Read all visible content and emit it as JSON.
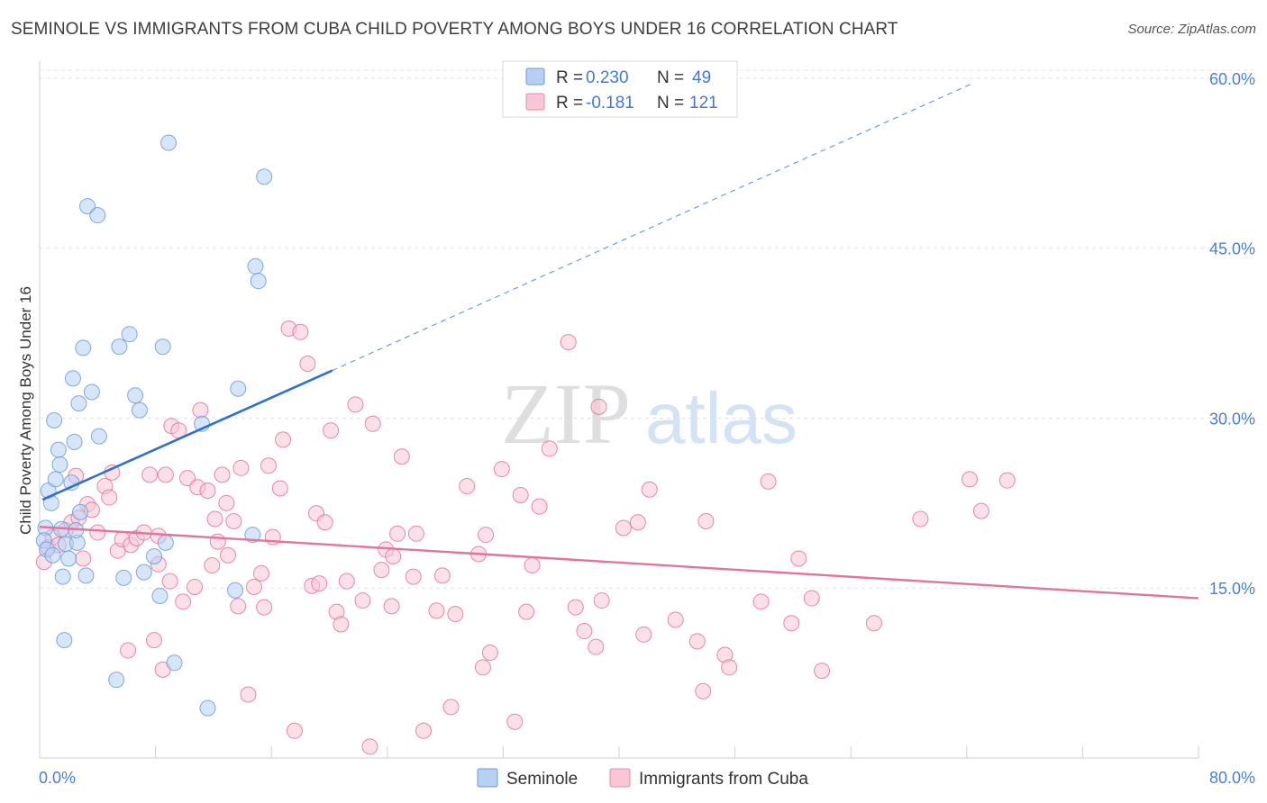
{
  "title": "SEMINOLE VS IMMIGRANTS FROM CUBA CHILD POVERTY AMONG BOYS UNDER 16 CORRELATION CHART",
  "source": "Source: ZipAtlas.com",
  "watermark": {
    "zip": "ZIP",
    "atlas": "atlas"
  },
  "legend": {
    "rows": [
      {
        "r_label": "R = ",
        "r_value": "0.230",
        "n_label": "N = ",
        "n_value": "49",
        "fill": "#b7d0f2",
        "stroke": "#6a9bdc"
      },
      {
        "r_label": "R = ",
        "r_value": "-0.181",
        "n_label": "N = ",
        "n_value": "121",
        "fill": "#f8c6d5",
        "stroke": "#e88aa6"
      }
    ]
  },
  "chart_data": {
    "type": "scatter",
    "title": "SEMINOLE VS IMMIGRANTS FROM CUBA CHILD POVERTY AMONG BOYS UNDER 16 CORRELATION CHART",
    "xlabel": "",
    "ylabel": "Child Poverty Among Boys Under 16",
    "xlim": [
      0,
      80
    ],
    "ylim": [
      0,
      61.5
    ],
    "y_ticks": [
      15,
      30,
      45,
      60
    ],
    "y_tick_labels": [
      "15.0%",
      "30.0%",
      "45.0%",
      "60.0%"
    ],
    "x_tick_labels": [
      "0.0%",
      "80.0%"
    ],
    "grid": true,
    "legend_position": "top-center",
    "series": [
      {
        "name": "Seminole",
        "color": "#6a9bdc",
        "fill": "#b7d0f2",
        "trend": {
          "x0": 0.2,
          "y0": 22.8,
          "x1": 20.2,
          "y1": 34.2,
          "dash_to_x": 64.5,
          "dash_to_y": 59.6
        },
        "points": [
          [
            0.4,
            20.3
          ],
          [
            0.3,
            19.2
          ],
          [
            0.5,
            18.4
          ],
          [
            0.6,
            23.6
          ],
          [
            0.8,
            22.5
          ],
          [
            1.0,
            29.8
          ],
          [
            1.1,
            24.6
          ],
          [
            1.3,
            27.2
          ],
          [
            1.4,
            25.9
          ],
          [
            1.5,
            20.2
          ],
          [
            1.6,
            16.0
          ],
          [
            1.7,
            10.4
          ],
          [
            1.8,
            18.9
          ],
          [
            2.0,
            17.6
          ],
          [
            2.2,
            24.3
          ],
          [
            2.3,
            33.5
          ],
          [
            2.4,
            27.9
          ],
          [
            2.6,
            19.0
          ],
          [
            2.7,
            31.3
          ],
          [
            2.8,
            21.7
          ],
          [
            3.0,
            36.2
          ],
          [
            3.2,
            16.1
          ],
          [
            3.3,
            48.7
          ],
          [
            3.6,
            32.3
          ],
          [
            4.0,
            47.9
          ],
          [
            4.1,
            28.4
          ],
          [
            5.3,
            6.9
          ],
          [
            5.5,
            36.3
          ],
          [
            5.8,
            15.9
          ],
          [
            6.2,
            37.4
          ],
          [
            6.6,
            32.0
          ],
          [
            6.9,
            30.7
          ],
          [
            7.2,
            16.4
          ],
          [
            7.9,
            17.8
          ],
          [
            8.3,
            14.3
          ],
          [
            8.5,
            36.3
          ],
          [
            8.7,
            19.0
          ],
          [
            8.9,
            54.3
          ],
          [
            9.3,
            8.4
          ],
          [
            11.2,
            29.5
          ],
          [
            11.6,
            4.4
          ],
          [
            13.5,
            14.8
          ],
          [
            13.7,
            32.6
          ],
          [
            14.7,
            19.7
          ],
          [
            14.9,
            43.4
          ],
          [
            15.1,
            42.1
          ],
          [
            15.5,
            51.3
          ],
          [
            0.9,
            17.9
          ],
          [
            2.5,
            20.1
          ]
        ]
      },
      {
        "name": "Immigrants from Cuba",
        "color": "#e3739a",
        "fill": "#f8c6d5",
        "trend": {
          "x0": 0.0,
          "y0": 20.4,
          "x1": 80.0,
          "y1": 14.1
        },
        "points": [
          [
            0.3,
            17.3
          ],
          [
            0.6,
            18.6
          ],
          [
            0.9,
            19.5
          ],
          [
            1.3,
            18.8
          ],
          [
            1.8,
            20.1
          ],
          [
            2.2,
            20.8
          ],
          [
            2.5,
            24.9
          ],
          [
            2.7,
            21.2
          ],
          [
            3.0,
            17.6
          ],
          [
            3.3,
            22.4
          ],
          [
            3.6,
            21.9
          ],
          [
            4.0,
            19.9
          ],
          [
            4.5,
            24.0
          ],
          [
            4.8,
            23.0
          ],
          [
            5.0,
            25.2
          ],
          [
            5.4,
            18.3
          ],
          [
            5.7,
            19.3
          ],
          [
            6.1,
            9.5
          ],
          [
            6.3,
            18.8
          ],
          [
            6.7,
            19.4
          ],
          [
            7.2,
            19.9
          ],
          [
            7.6,
            25.0
          ],
          [
            7.9,
            10.4
          ],
          [
            8.2,
            19.6
          ],
          [
            8.5,
            7.8
          ],
          [
            8.7,
            25.0
          ],
          [
            9.0,
            15.6
          ],
          [
            9.1,
            29.3
          ],
          [
            9.6,
            28.9
          ],
          [
            9.9,
            13.8
          ],
          [
            10.2,
            24.7
          ],
          [
            10.7,
            15.1
          ],
          [
            10.9,
            23.9
          ],
          [
            11.1,
            30.7
          ],
          [
            11.6,
            23.6
          ],
          [
            11.9,
            17.0
          ],
          [
            12.1,
            21.1
          ],
          [
            12.3,
            19.1
          ],
          [
            12.6,
            25.0
          ],
          [
            13.0,
            17.9
          ],
          [
            13.4,
            20.9
          ],
          [
            13.7,
            13.4
          ],
          [
            13.9,
            25.6
          ],
          [
            14.4,
            5.6
          ],
          [
            14.8,
            15.1
          ],
          [
            15.3,
            16.3
          ],
          [
            15.5,
            13.3
          ],
          [
            15.8,
            25.8
          ],
          [
            16.1,
            19.5
          ],
          [
            16.6,
            23.8
          ],
          [
            16.8,
            28.1
          ],
          [
            17.2,
            37.9
          ],
          [
            17.6,
            2.4
          ],
          [
            18.0,
            37.6
          ],
          [
            18.5,
            34.8
          ],
          [
            18.8,
            15.2
          ],
          [
            19.1,
            21.6
          ],
          [
            19.3,
            15.4
          ],
          [
            19.7,
            20.8
          ],
          [
            20.1,
            28.9
          ],
          [
            20.5,
            12.9
          ],
          [
            20.8,
            11.8
          ],
          [
            21.2,
            15.6
          ],
          [
            21.8,
            31.2
          ],
          [
            22.3,
            13.9
          ],
          [
            22.8,
            1.0
          ],
          [
            23.0,
            29.5
          ],
          [
            23.6,
            16.6
          ],
          [
            23.9,
            18.4
          ],
          [
            24.3,
            13.4
          ],
          [
            24.4,
            17.8
          ],
          [
            24.7,
            19.8
          ],
          [
            25.0,
            26.6
          ],
          [
            25.8,
            16.0
          ],
          [
            26.0,
            19.8
          ],
          [
            26.5,
            2.4
          ],
          [
            27.4,
            13.0
          ],
          [
            27.8,
            16.1
          ],
          [
            28.4,
            4.5
          ],
          [
            28.7,
            12.7
          ],
          [
            29.5,
            24.0
          ],
          [
            30.3,
            18.0
          ],
          [
            30.6,
            8.0
          ],
          [
            30.8,
            19.7
          ],
          [
            31.1,
            9.3
          ],
          [
            31.9,
            25.5
          ],
          [
            32.8,
            3.2
          ],
          [
            33.2,
            23.2
          ],
          [
            33.6,
            12.9
          ],
          [
            34.0,
            17.0
          ],
          [
            34.5,
            22.2
          ],
          [
            35.2,
            27.3
          ],
          [
            36.5,
            36.7
          ],
          [
            37.0,
            13.3
          ],
          [
            37.6,
            11.2
          ],
          [
            38.4,
            9.8
          ],
          [
            38.6,
            31.0
          ],
          [
            38.8,
            13.9
          ],
          [
            40.3,
            20.3
          ],
          [
            41.3,
            20.8
          ],
          [
            41.7,
            10.9
          ],
          [
            42.1,
            23.7
          ],
          [
            43.9,
            12.2
          ],
          [
            45.4,
            10.3
          ],
          [
            45.8,
            5.9
          ],
          [
            46.0,
            20.9
          ],
          [
            47.3,
            9.1
          ],
          [
            47.6,
            8.0
          ],
          [
            49.8,
            13.8
          ],
          [
            50.3,
            24.4
          ],
          [
            51.9,
            11.9
          ],
          [
            52.4,
            17.6
          ],
          [
            53.3,
            14.1
          ],
          [
            54.0,
            7.7
          ],
          [
            57.6,
            11.9
          ],
          [
            60.8,
            21.1
          ],
          [
            64.2,
            24.6
          ],
          [
            65.0,
            21.8
          ],
          [
            66.8,
            24.5
          ],
          [
            8.2,
            17.1
          ],
          [
            12.9,
            22.5
          ]
        ]
      }
    ]
  },
  "bottom_legend": [
    {
      "label": "Seminole",
      "fill": "#b7d0f2",
      "stroke": "#6a9bdc"
    },
    {
      "label": "Immigrants from Cuba",
      "fill": "#f8c6d5",
      "stroke": "#e88aa6"
    }
  ]
}
